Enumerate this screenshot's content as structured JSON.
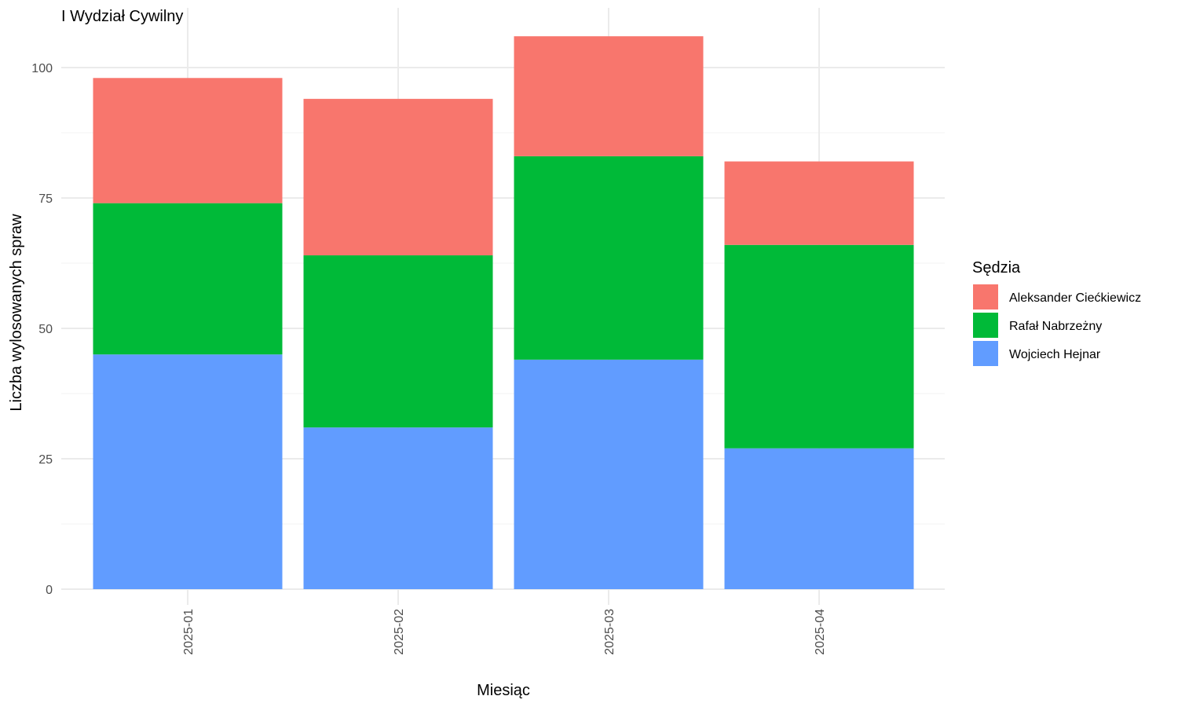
{
  "chart_data": {
    "type": "bar",
    "stacked": true,
    "title": "I Wydział Cywilny",
    "xlabel": "Miesiąc",
    "ylabel": "Liczba wylosowanych spraw",
    "categories": [
      "2025-01",
      "2025-02",
      "2025-03",
      "2025-04"
    ],
    "ylim": [
      0,
      110
    ],
    "yticks": [
      0,
      25,
      50,
      75,
      100
    ],
    "grid": true,
    "legend": {
      "title": "Sędzia",
      "position": "right"
    },
    "series": [
      {
        "name": "Wojciech Hejnar",
        "color": "#619CFF",
        "values": [
          45,
          31,
          44,
          27
        ]
      },
      {
        "name": "Rafał Nabrzeżny",
        "color": "#00BA38",
        "values": [
          29,
          33,
          39,
          39
        ]
      },
      {
        "name": "Aleksander Ciećkiewicz",
        "color": "#F8766D",
        "values": [
          24,
          30,
          23,
          16
        ]
      }
    ],
    "legend_order": [
      "Aleksander Ciećkiewicz",
      "Rafał Nabrzeżny",
      "Wojciech Hejnar"
    ]
  }
}
